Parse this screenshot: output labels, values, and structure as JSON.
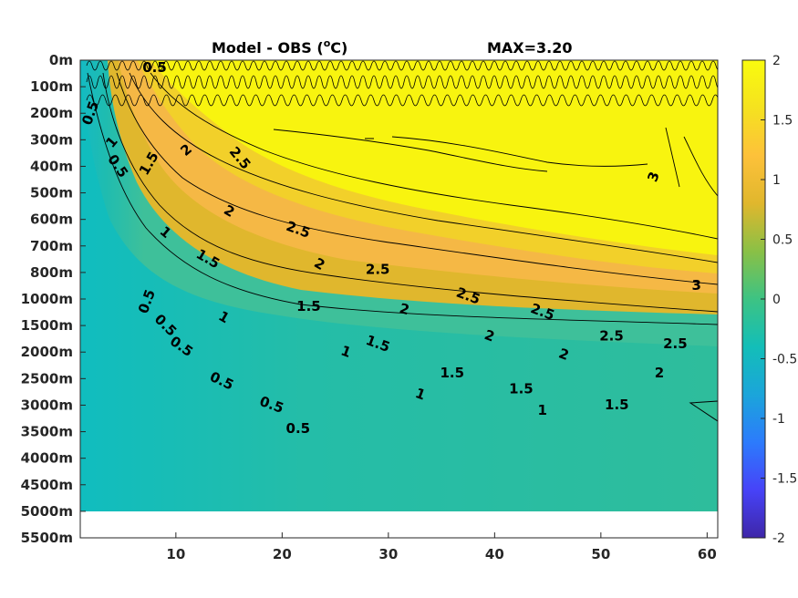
{
  "chart_data": {
    "type": "heatmap",
    "title": "Model - OBS (",
    "title_unit": "o",
    "title_suffix": "C)",
    "max_label": "MAX=3.20",
    "x_ticks": [
      10,
      20,
      30,
      40,
      50,
      60
    ],
    "x_range": [
      1,
      61
    ],
    "y_tick_labels": [
      "0m",
      "100m",
      "200m",
      "300m",
      "400m",
      "500m",
      "600m",
      "700m",
      "800m",
      "1000m",
      "1500m",
      "2000m",
      "2500m",
      "3000m",
      "3500m",
      "4000m",
      "4500m",
      "5000m",
      "5500m"
    ],
    "data_bottom_label": "5000m",
    "colorbar": {
      "range": [
        -2,
        2
      ],
      "tick_labels": [
        "2",
        "1.5",
        "1",
        "0.5",
        "0",
        "-0.5",
        "-1",
        "-1.5",
        "-2"
      ],
      "colors": [
        "#3e26a8",
        "#4743f8",
        "#2c7bfc",
        "#1ba5da",
        "#13beb8",
        "#3dc383",
        "#8ac046",
        "#e0b72d",
        "#fdc13a",
        "#f5e21f",
        "#f9fb0e"
      ]
    },
    "colors": {
      "background_field": "#1dbaaf",
      "deep_field": "#13beb8",
      "warm_band": "#f5b845",
      "hot_core": "#f8f40f",
      "contour": "#000000"
    },
    "contour_labels": [
      {
        "text": "0.5",
        "x": 21.5,
        "y": 13.9,
        "rot": 0
      },
      {
        "text": "0.5",
        "x": 19.0,
        "y": 13.0,
        "rot": 20
      },
      {
        "text": "0.5",
        "x": 14.3,
        "y": 12.1,
        "rot": 25
      },
      {
        "text": "0.5",
        "x": 10.5,
        "y": 10.8,
        "rot": 35
      },
      {
        "text": "0.5",
        "x": 9.0,
        "y": 10.0,
        "rot": 45
      },
      {
        "text": "0.5",
        "x": 7.3,
        "y": 9.1,
        "rot": -70
      },
      {
        "text": "0.5",
        "x": 4.5,
        "y": 4.0,
        "rot": 55
      },
      {
        "text": "0.5",
        "x": 2.0,
        "y": 2.0,
        "rot": -70
      },
      {
        "text": "0.5",
        "x": 8.0,
        "y": 0.3,
        "rot": 0
      },
      {
        "text": "1",
        "x": 14.5,
        "y": 9.7,
        "rot": 30
      },
      {
        "text": "1",
        "x": 9.0,
        "y": 6.5,
        "rot": 40
      },
      {
        "text": "1",
        "x": 4.0,
        "y": 3.1,
        "rot": -50
      },
      {
        "text": "1",
        "x": 26.0,
        "y": 11.0,
        "rot": 20
      },
      {
        "text": "1",
        "x": 33.0,
        "y": 12.6,
        "rot": 20
      },
      {
        "text": "1",
        "x": 44.5,
        "y": 13.2,
        "rot": 0
      },
      {
        "text": "1.5",
        "x": 22.5,
        "y": 9.3,
        "rot": 0
      },
      {
        "text": "1.5",
        "x": 29.0,
        "y": 10.7,
        "rot": 20
      },
      {
        "text": "1.5",
        "x": 36.0,
        "y": 11.8,
        "rot": 0
      },
      {
        "text": "1.5",
        "x": 42.5,
        "y": 12.4,
        "rot": 0
      },
      {
        "text": "1.5",
        "x": 13.0,
        "y": 7.5,
        "rot": 30
      },
      {
        "text": "1.5",
        "x": 7.5,
        "y": 3.9,
        "rot": -60
      },
      {
        "text": "1.5",
        "x": 51.5,
        "y": 13.0,
        "rot": 0
      },
      {
        "text": "2",
        "x": 15.0,
        "y": 5.7,
        "rot": 30
      },
      {
        "text": "2",
        "x": 23.5,
        "y": 7.7,
        "rot": 30
      },
      {
        "text": "2",
        "x": 31.5,
        "y": 9.4,
        "rot": 15
      },
      {
        "text": "2",
        "x": 39.5,
        "y": 10.4,
        "rot": 20
      },
      {
        "text": "2",
        "x": 46.5,
        "y": 11.1,
        "rot": 20
      },
      {
        "text": "2",
        "x": 55.5,
        "y": 11.8,
        "rot": 0
      },
      {
        "text": "2",
        "x": 11.0,
        "y": 3.4,
        "rot": -40
      },
      {
        "text": "2.5",
        "x": 21.5,
        "y": 6.4,
        "rot": 20
      },
      {
        "text": "2.5",
        "x": 29.0,
        "y": 7.9,
        "rot": 0
      },
      {
        "text": "2.5",
        "x": 37.5,
        "y": 8.9,
        "rot": 20
      },
      {
        "text": "2.5",
        "x": 44.5,
        "y": 9.5,
        "rot": 20
      },
      {
        "text": "2.5",
        "x": 51.0,
        "y": 10.4,
        "rot": 0
      },
      {
        "text": "2.5",
        "x": 57.0,
        "y": 10.7,
        "rot": 0
      },
      {
        "text": "2.5",
        "x": 16.0,
        "y": 3.7,
        "rot": 50
      },
      {
        "text": "3",
        "x": 59.0,
        "y": 8.5,
        "rot": 0
      },
      {
        "text": "3",
        "x": 55.0,
        "y": 4.4,
        "rot": -70
      }
    ]
  }
}
